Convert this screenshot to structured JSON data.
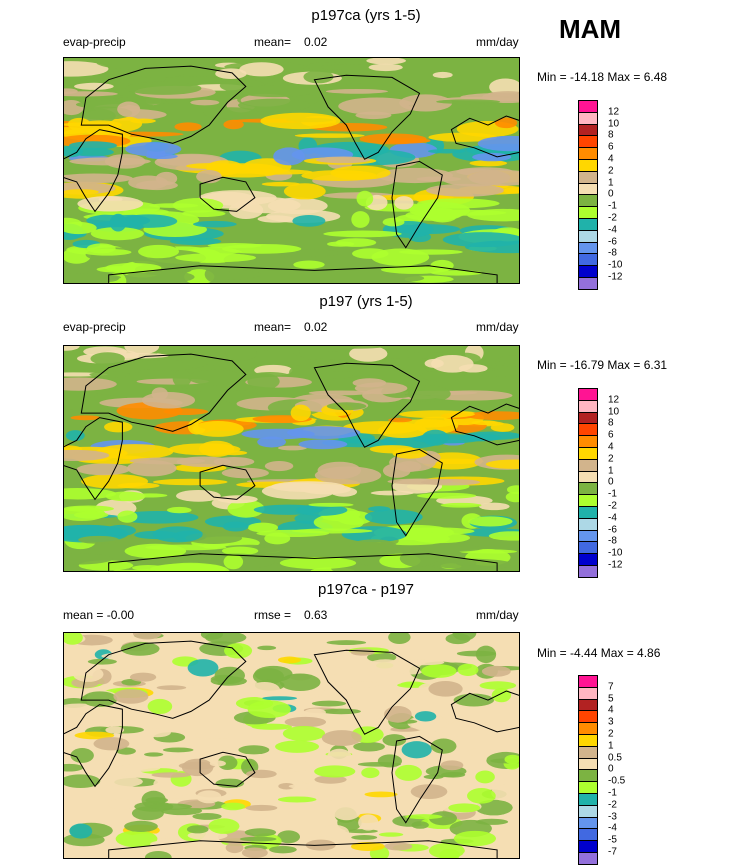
{
  "season": "MAM",
  "panels": [
    {
      "title": "p197ca (yrs 1-5)",
      "left_text": "evap-precip",
      "mid_label": "mean=",
      "mid_value": "0.02",
      "units": "mm/day",
      "minmax": "Min = -14.18 Max =   6.48",
      "legend": {
        "labels": [
          "12",
          "10",
          "8",
          "6",
          "4",
          "2",
          "1",
          "0",
          "-1",
          "-2",
          "-4",
          "-6",
          "-8",
          "-10",
          "-12"
        ],
        "colors": [
          "#ff1493",
          "#ffb6c1",
          "#b22222",
          "#ff4500",
          "#ff8c00",
          "#ffd700",
          "#d2b48c",
          "#f5deb3",
          "#7cb342",
          "#adff2f",
          "#20b2aa",
          "#add8e6",
          "#6495ed",
          "#4169e1",
          "#0000cd",
          "#9370db"
        ]
      }
    },
    {
      "title": "p197 (yrs 1-5)",
      "left_text": "evap-precip",
      "mid_label": "mean=",
      "mid_value": "0.02",
      "units": "mm/day",
      "minmax": "Min = -16.79 Max =   6.31",
      "legend": {
        "labels": [
          "12",
          "10",
          "8",
          "6",
          "4",
          "2",
          "1",
          "0",
          "-1",
          "-2",
          "-4",
          "-6",
          "-8",
          "-10",
          "-12"
        ],
        "colors": [
          "#ff1493",
          "#ffb6c1",
          "#b22222",
          "#ff4500",
          "#ff8c00",
          "#ffd700",
          "#d2b48c",
          "#f5deb3",
          "#7cb342",
          "#adff2f",
          "#20b2aa",
          "#add8e6",
          "#6495ed",
          "#4169e1",
          "#0000cd",
          "#9370db"
        ]
      }
    },
    {
      "title": "p197ca - p197",
      "left_text": "mean =  -0.00",
      "mid_label": "rmse =",
      "mid_value": "0.63",
      "units": "mm/day",
      "minmax": "Min =  -4.44 Max =   4.86",
      "legend": {
        "labels": [
          "7",
          "5",
          "4",
          "3",
          "2",
          "1",
          "0.5",
          "0",
          "-0.5",
          "-1",
          "-2",
          "-3",
          "-4",
          "-5",
          "-7"
        ],
        "colors": [
          "#ff1493",
          "#ffb6c1",
          "#b22222",
          "#ff4500",
          "#ff8c00",
          "#ffd700",
          "#d2b48c",
          "#f5deb3",
          "#7cb342",
          "#adff2f",
          "#20b2aa",
          "#add8e6",
          "#6495ed",
          "#4169e1",
          "#0000cd",
          "#9370db"
        ]
      }
    }
  ],
  "palette": {
    "land_green": "#7cb342",
    "light_green": "#adff2f",
    "wheat": "#f5deb3",
    "tan": "#d2b48c",
    "gold": "#ffd700",
    "orange": "#ff8c00",
    "teal": "#20b2aa",
    "blue": "#6495ed"
  }
}
